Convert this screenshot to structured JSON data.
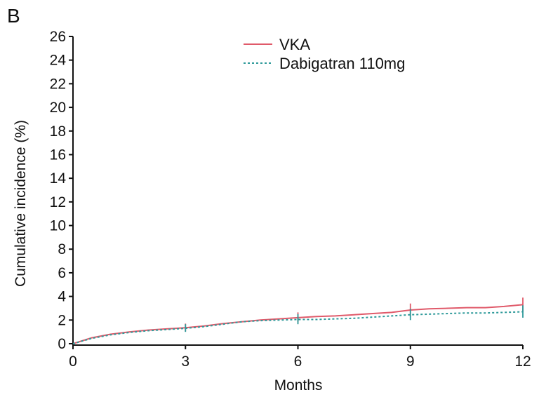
{
  "panel_label": "B",
  "chart_data": {
    "type": "line",
    "xlabel": "Months",
    "ylabel": "Cumulative incidence (%)",
    "xlim": [
      0,
      12
    ],
    "ylim": [
      0,
      26
    ],
    "x_ticks": [
      0,
      3,
      6,
      9,
      12
    ],
    "y_ticks": [
      0,
      2,
      4,
      6,
      8,
      10,
      12,
      14,
      16,
      18,
      20,
      22,
      24,
      26
    ],
    "grid": false,
    "legend_position": "top-right",
    "series": [
      {
        "name": "VKA",
        "color": "#e05a6a",
        "style": "solid",
        "x": [
          0,
          0.5,
          1,
          1.5,
          2,
          2.5,
          3,
          3.5,
          4,
          4.5,
          5,
          5.5,
          6,
          6.5,
          7,
          7.5,
          8,
          8.5,
          9,
          9.5,
          10,
          10.5,
          11,
          11.5,
          12
        ],
        "y": [
          0,
          0.5,
          0.8,
          1.0,
          1.15,
          1.25,
          1.35,
          1.5,
          1.7,
          1.85,
          2.0,
          2.1,
          2.2,
          2.3,
          2.35,
          2.45,
          2.55,
          2.65,
          2.85,
          2.95,
          3.0,
          3.05,
          3.05,
          3.15,
          3.3
        ],
        "error_bars": [
          {
            "x": 3,
            "low": 1.05,
            "high": 1.7
          },
          {
            "x": 6,
            "low": 1.8,
            "high": 2.65
          },
          {
            "x": 9,
            "low": 2.3,
            "high": 3.4
          },
          {
            "x": 12,
            "low": 2.7,
            "high": 3.9
          }
        ]
      },
      {
        "name": "Dabigatran 110mg",
        "color": "#2e9a9a",
        "style": "dotted",
        "x": [
          0,
          0.5,
          1,
          1.5,
          2,
          2.5,
          3,
          3.5,
          4,
          4.5,
          5,
          5.5,
          6,
          6.5,
          7,
          7.5,
          8,
          8.5,
          9,
          9.5,
          10,
          10.5,
          11,
          11.5,
          12
        ],
        "y": [
          0,
          0.45,
          0.75,
          0.95,
          1.1,
          1.2,
          1.3,
          1.45,
          1.65,
          1.85,
          1.95,
          2.0,
          2.05,
          2.05,
          2.1,
          2.15,
          2.25,
          2.35,
          2.45,
          2.5,
          2.55,
          2.6,
          2.6,
          2.65,
          2.7
        ],
        "error_bars": [
          {
            "x": 3,
            "low": 1.0,
            "high": 1.65
          },
          {
            "x": 6,
            "low": 1.65,
            "high": 2.5
          },
          {
            "x": 9,
            "low": 2.0,
            "high": 2.95
          },
          {
            "x": 12,
            "low": 2.2,
            "high": 3.25
          }
        ]
      }
    ]
  }
}
